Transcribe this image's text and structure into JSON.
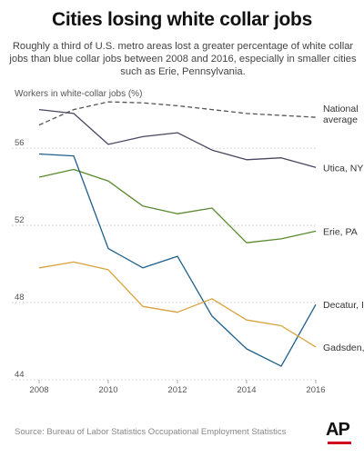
{
  "title": "Cities losing white collar jobs",
  "subtitle": "Roughly a third of U.S. metro areas lost a greater percentage of white collar jobs than blue collar jobs between 2008 and 2016, especially in smaller cities such as Erie, Pennsylvania.",
  "source": "Source: Bureau of Labor Statistics Occupational Employment Statistics",
  "logo": "AP",
  "chart_data": {
    "type": "line",
    "title": "Cities losing white collar jobs",
    "ylabel": "Workers in white-collar jobs (%)",
    "xlabel": "",
    "x": [
      2008,
      2009,
      2010,
      2011,
      2012,
      2013,
      2014,
      2015,
      2016
    ],
    "xticks": [
      "2008",
      "2010",
      "2012",
      "2014",
      "2016"
    ],
    "yticks": [
      "44",
      "48",
      "52",
      "56"
    ],
    "ylim": [
      44,
      58.5
    ],
    "grid": "horizontal dotted",
    "series": [
      {
        "name": "National average",
        "label_lines": [
          "National",
          "average"
        ],
        "color": "#555555",
        "dashed": true,
        "values": [
          57.2,
          58.0,
          58.4,
          58.35,
          58.2,
          58.0,
          57.8,
          57.7,
          57.6
        ]
      },
      {
        "name": "Utica, NY",
        "label_lines": [
          "Utica, NY"
        ],
        "color": "#4a4660",
        "dashed": false,
        "values": [
          58.0,
          57.8,
          56.2,
          56.6,
          56.8,
          55.9,
          55.4,
          55.5,
          55.0
        ]
      },
      {
        "name": "Erie, PA",
        "label_lines": [
          "Erie, PA"
        ],
        "color": "#5a8a2e",
        "dashed": false,
        "values": [
          54.5,
          54.9,
          54.3,
          53.0,
          52.6,
          52.9,
          51.1,
          51.3,
          51.7
        ]
      },
      {
        "name": "Decatur, IL",
        "label_lines": [
          "Decatur, IL"
        ],
        "color": "#1f5f8b",
        "dashed": false,
        "values": [
          55.7,
          55.6,
          50.8,
          49.8,
          50.4,
          47.3,
          45.6,
          44.7,
          47.9
        ]
      },
      {
        "name": "Gadsden, AL",
        "label_lines": [
          "Gadsden, AL"
        ],
        "color": "#d9a23a",
        "dashed": false,
        "values": [
          49.8,
          50.1,
          49.7,
          47.8,
          47.5,
          48.2,
          47.1,
          46.8,
          45.7
        ]
      }
    ]
  }
}
